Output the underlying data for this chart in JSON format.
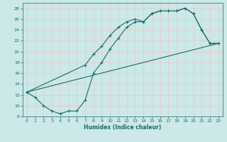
{
  "xlabel": "Humidex (Indice chaleur)",
  "ylabel": "",
  "bg_color": "#cce8e8",
  "grid_color": "#e8c8c8",
  "line_color": "#1a6b6b",
  "xlim": [
    -0.5,
    23.5
  ],
  "ylim": [
    8,
    29
  ],
  "xticks": [
    0,
    1,
    2,
    3,
    4,
    5,
    6,
    7,
    8,
    9,
    10,
    11,
    12,
    13,
    14,
    15,
    16,
    17,
    18,
    19,
    20,
    21,
    22,
    23
  ],
  "yticks": [
    8,
    10,
    12,
    14,
    16,
    18,
    20,
    22,
    24,
    26,
    28
  ],
  "line1_x": [
    0,
    1,
    2,
    3,
    4,
    5,
    6,
    7,
    8,
    9,
    10,
    11,
    12,
    13,
    14,
    15,
    16,
    17,
    18,
    19,
    20,
    21,
    22,
    23
  ],
  "line1_y": [
    12.5,
    11.5,
    10.0,
    9.0,
    8.5,
    9.0,
    9.0,
    11.0,
    16.0,
    18.0,
    20.5,
    22.5,
    24.5,
    25.5,
    25.5,
    27.0,
    27.5,
    27.5,
    27.5,
    28.0,
    27.0,
    24.0,
    21.5,
    21.5
  ],
  "line2_x": [
    0,
    7,
    8,
    9,
    10,
    11,
    12,
    13,
    14,
    15,
    16,
    17,
    18,
    19,
    20,
    21,
    22,
    23
  ],
  "line2_y": [
    12.5,
    17.5,
    19.5,
    21.0,
    23.0,
    24.5,
    25.5,
    26.0,
    25.5,
    27.0,
    27.5,
    27.5,
    27.5,
    28.0,
    27.0,
    24.0,
    21.5,
    21.5
  ],
  "line3_x": [
    0,
    23
  ],
  "line3_y": [
    12.5,
    21.5
  ]
}
